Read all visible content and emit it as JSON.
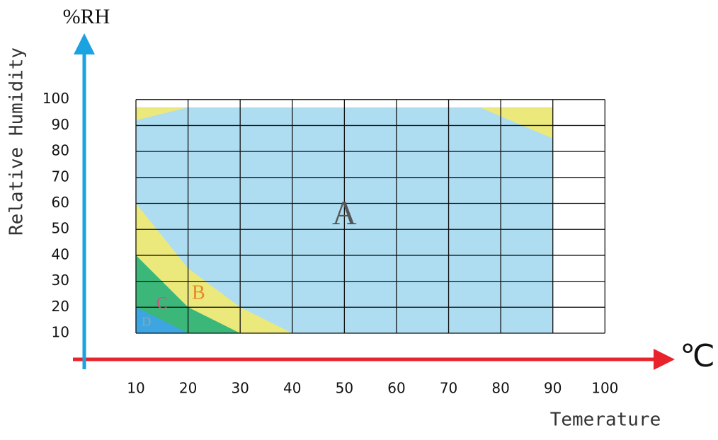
{
  "chart_data": {
    "type": "region",
    "y_title": "%RH",
    "y_label": "Relative Humidity",
    "x_label": "Temerature",
    "x_unit": "℃",
    "xlim": [
      0,
      113
    ],
    "ylim": [
      0,
      125
    ],
    "xticks": [
      10,
      20,
      30,
      40,
      50,
      60,
      70,
      80,
      90,
      100
    ],
    "yticks": [
      10,
      20,
      30,
      40,
      50,
      60,
      70,
      80,
      90,
      100
    ],
    "grid": true,
    "series": [
      {
        "name": "A",
        "color": "#aedcf0",
        "label_color": "#555555",
        "polygons": [
          {
            "x": [
              10,
              90,
              90,
              10
            ],
            "y": [
              10,
              10,
              97,
              97
            ]
          }
        ]
      },
      {
        "name": "B",
        "color": "#ece97c",
        "label_color": "#e8862a",
        "polygons": [
          {
            "x": [
              10,
              20,
              30,
              40,
              10
            ],
            "y": [
              60,
              35,
              20,
              10,
              10
            ]
          },
          {
            "x": [
              10,
              20,
              10
            ],
            "y": [
              97,
              97,
              92
            ]
          },
          {
            "x": [
              76,
              90,
              90
            ],
            "y": [
              97,
              97,
              85
            ]
          }
        ]
      },
      {
        "name": "C",
        "color": "#3bb77a",
        "label_color": "#e24a7d",
        "polygons": [
          {
            "x": [
              10,
              20,
              30,
              10
            ],
            "y": [
              40,
              20,
              10,
              10
            ]
          }
        ]
      },
      {
        "name": "D",
        "color": "#3da6e2",
        "label_color": "#8fa8a8",
        "polygons": [
          {
            "x": [
              10,
              20,
              10
            ],
            "y": [
              20,
              10,
              10
            ]
          }
        ]
      }
    ]
  }
}
